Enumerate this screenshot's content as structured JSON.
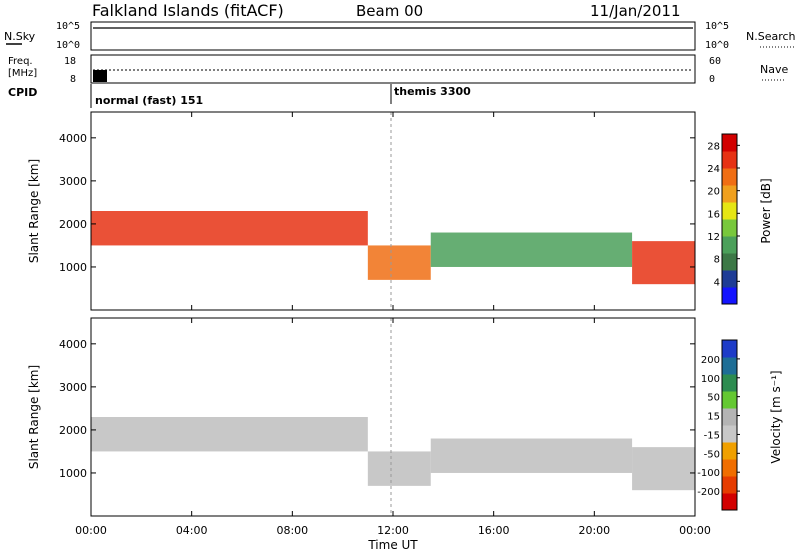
{
  "header": {
    "title": "Falkland Islands (fitACF)",
    "beam": "Beam 00",
    "date": "11/Jan/2011"
  },
  "left_labels": {
    "nsky": "N.Sky",
    "freq_line1": "Freq.",
    "freq_line2": "[MHz]",
    "cpid": "CPID"
  },
  "right_labels": {
    "nsearch": "N.Search",
    "nave": "Nave"
  },
  "strip_ticks": {
    "nsky_top": "10^5",
    "nsky_bottom": "10^0",
    "freq_top": "18",
    "freq_bottom": "8",
    "nsearch_top": "10^5",
    "nsearch_bottom": "10^0",
    "nave_top": "60",
    "nave_bottom": "0"
  },
  "cpid_labels": {
    "mode1": "normal (fast) 151",
    "mode2": "themis 3300"
  },
  "colors": {
    "power_scale": [
      "#1414ff",
      "#1e3c96",
      "#3c7846",
      "#4ba05a",
      "#78c83c",
      "#e6e614",
      "#f0a01e",
      "#f06e14",
      "#e63214",
      "#d20000"
    ],
    "velocity_scale": [
      "#1e3cc8",
      "#1e6e96",
      "#2d8c50",
      "#64c832",
      "#b4b4b4",
      "#c8c8c8",
      "#f0a000",
      "#f06e00",
      "#e63c00",
      "#d20000"
    ],
    "ground_scatter": "#bebebe"
  },
  "chart_data": [
    {
      "type": "heatmap",
      "title": "Power",
      "xlabel": "",
      "ylabel": "Slant Range [km]",
      "xlim": [
        "00:00",
        "24:00"
      ],
      "ylim": [
        0,
        4600
      ],
      "yticks": [
        "1000",
        "2000",
        "3000",
        "4000"
      ],
      "colorbar": {
        "label": "Power [dB]",
        "ticks": [
          "4",
          "8",
          "12",
          "16",
          "20",
          "24",
          "28"
        ],
        "range": [
          0,
          30
        ]
      },
      "echo_bands": [
        {
          "t_start": 0.0,
          "t_end": 11.0,
          "range_low": 1500,
          "range_high": 2300,
          "power_db": 26
        },
        {
          "t_start": 11.0,
          "t_end": 13.5,
          "range_low": 700,
          "range_high": 1500,
          "power_db": 22
        },
        {
          "t_start": 13.5,
          "t_end": 21.5,
          "range_low": 1000,
          "range_high": 1800,
          "power_db": 10
        },
        {
          "t_start": 21.5,
          "t_end": 24.0,
          "range_low": 600,
          "range_high": 1600,
          "power_db": 24
        }
      ]
    },
    {
      "type": "heatmap",
      "title": "Velocity",
      "xlabel": "Time UT",
      "ylabel": "Slant Range [km]",
      "xlim": [
        "00:00",
        "24:00"
      ],
      "ylim": [
        0,
        4600
      ],
      "yticks": [
        "1000",
        "2000",
        "3000",
        "4000"
      ],
      "xticks": [
        "00:00",
        "04:00",
        "08:00",
        "12:00",
        "16:00",
        "20:00",
        "00:00"
      ],
      "colorbar": {
        "label": "Velocity [m s⁻¹]",
        "ticks": [
          "200",
          "100",
          "50",
          "15",
          "-15",
          "-50",
          "-100",
          "-200"
        ],
        "range": [
          -250,
          250
        ]
      },
      "echo_bands": [
        {
          "t_start": 0.0,
          "t_end": 11.0,
          "range_low": 1500,
          "range_high": 2300,
          "velocity": 0
        },
        {
          "t_start": 11.0,
          "t_end": 13.5,
          "range_low": 700,
          "range_high": 1500,
          "velocity": 0
        },
        {
          "t_start": 13.5,
          "t_end": 21.5,
          "range_low": 1000,
          "range_high": 1800,
          "velocity": 0
        },
        {
          "t_start": 21.5,
          "t_end": 24.0,
          "range_low": 600,
          "range_high": 1600,
          "velocity": 0
        }
      ]
    }
  ]
}
